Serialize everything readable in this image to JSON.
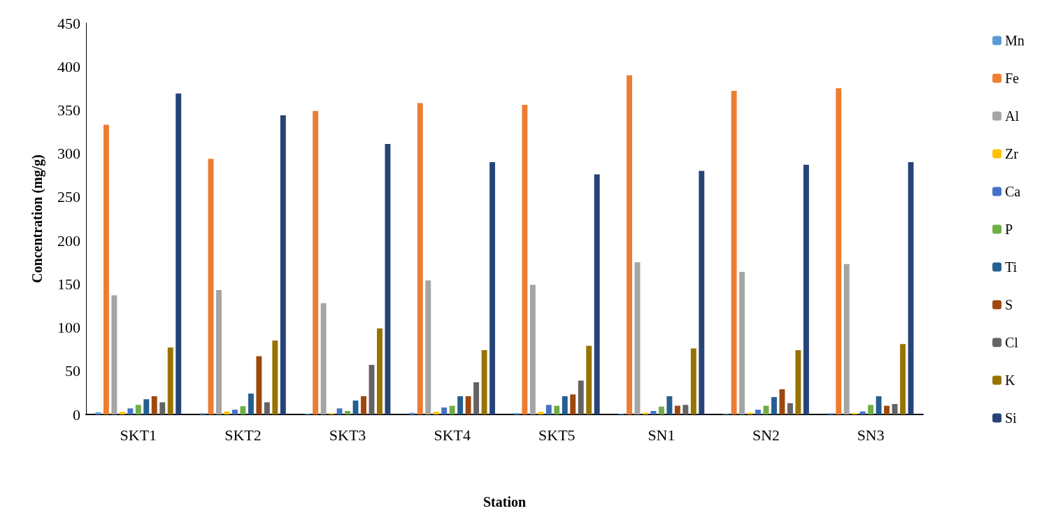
{
  "chart_data": {
    "type": "bar",
    "xlabel": "Station",
    "ylabel": "Concentration (mg/g)",
    "categories": [
      "SKT1",
      "SKT2",
      "SKT3",
      "SKT4",
      "SKT5",
      "SN1",
      "SN2",
      "SN3"
    ],
    "series": [
      {
        "name": "Mn",
        "color": "#5b9bd5",
        "values": [
          2.5,
          1.5,
          1,
          2,
          1.5,
          1,
          1,
          1.5
        ]
      },
      {
        "name": "Fe",
        "color": "#ed7d31",
        "values": [
          333,
          294,
          349,
          358,
          356,
          390,
          372,
          375
        ]
      },
      {
        "name": "Al",
        "color": "#a5a5a5",
        "values": [
          137,
          143,
          128,
          154,
          149,
          175,
          164,
          173
        ]
      },
      {
        "name": "Zr",
        "color": "#ffc000",
        "values": [
          3,
          3.5,
          1.5,
          3,
          3,
          2,
          2,
          1.5
        ]
      },
      {
        "name": "Ca",
        "color": "#4472c4",
        "values": [
          7,
          5.5,
          7,
          8,
          11,
          4,
          5.5,
          3.5
        ]
      },
      {
        "name": "P",
        "color": "#70ad47",
        "values": [
          11,
          9.5,
          4,
          10,
          10,
          9,
          10,
          11
        ]
      },
      {
        "name": "Ti",
        "color": "#255e91",
        "values": [
          17.5,
          24,
          16,
          21,
          21,
          21,
          20,
          21
        ]
      },
      {
        "name": "S",
        "color": "#9e480e",
        "values": [
          21,
          67,
          21,
          21,
          23,
          10,
          29,
          10
        ]
      },
      {
        "name": "Cl",
        "color": "#636363",
        "values": [
          14,
          14,
          57,
          37,
          39,
          11,
          13,
          12
        ]
      },
      {
        "name": "K",
        "color": "#997300",
        "values": [
          77,
          85,
          99,
          74,
          79,
          76,
          74,
          81
        ]
      },
      {
        "name": "Si",
        "color": "#264478",
        "values": [
          369,
          344,
          311,
          290,
          276,
          280,
          287,
          290
        ]
      }
    ],
    "ylim": [
      0,
      450
    ],
    "yticks": [
      0,
      50,
      100,
      150,
      200,
      250,
      300,
      350,
      400,
      450
    ],
    "grid": false,
    "legend": "right"
  }
}
